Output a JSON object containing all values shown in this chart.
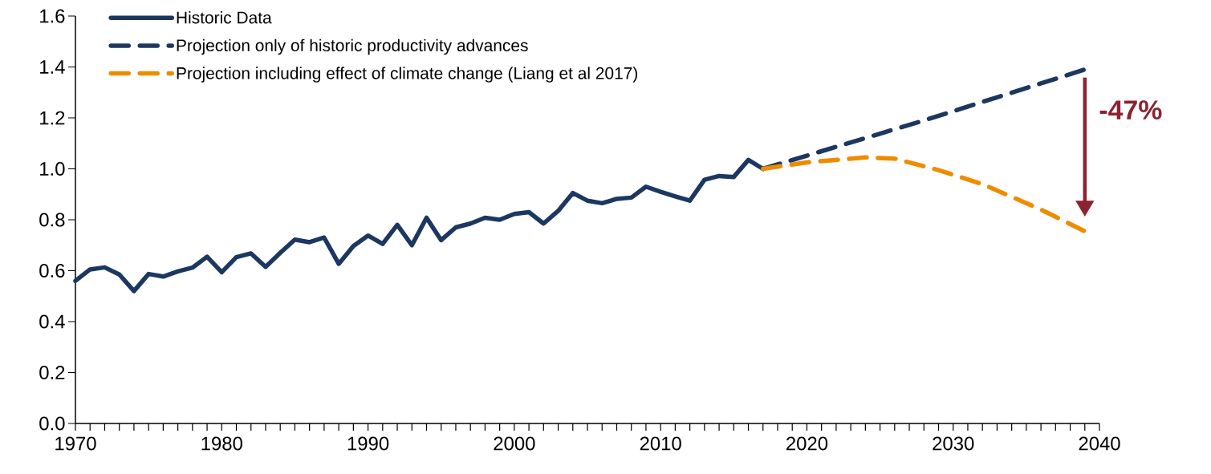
{
  "chart_data": {
    "type": "line",
    "xlim": [
      1970,
      2040
    ],
    "xticks": [
      1970,
      1980,
      1990,
      2000,
      2010,
      2020,
      2030,
      2040
    ],
    "ylim": [
      0,
      1.6
    ],
    "yticks": [
      {
        "value": 0,
        "label": "0.0"
      },
      {
        "value": 0.2,
        "label": "0.2"
      },
      {
        "value": 0.4,
        "label": "0.4"
      },
      {
        "value": 0.6,
        "label": "0.6"
      },
      {
        "value": 0.8,
        "label": "0.8"
      },
      {
        "value": 1.0,
        "label": "1.0"
      },
      {
        "value": 1.2,
        "label": "1.2"
      },
      {
        "value": 1.4,
        "label": "1.4"
      },
      {
        "value": 1.6,
        "label": "1.6"
      }
    ],
    "legend": "top left",
    "marker": "none",
    "grid": false,
    "series": [
      {
        "name": "Historic Data",
        "color": "#1c3760",
        "line_style": "solid",
        "x": [
          1970,
          1971,
          1972,
          1973,
          1974,
          1975,
          1976,
          1977,
          1978,
          1979,
          1980,
          1981,
          1982,
          1983,
          1984,
          1985,
          1986,
          1987,
          1988,
          1989,
          1990,
          1991,
          1992,
          1993,
          1994,
          1995,
          1996,
          1997,
          1998,
          1999,
          2000,
          2001,
          2002,
          2003,
          2004,
          2005,
          2006,
          2007,
          2008,
          2009,
          2010,
          2011,
          2012,
          2013,
          2014,
          2015,
          2016,
          2017
        ],
        "values": [
          0.56,
          0.605,
          0.613,
          0.585,
          0.52,
          0.587,
          0.577,
          0.597,
          0.612,
          0.655,
          0.594,
          0.653,
          0.668,
          0.615,
          0.67,
          0.722,
          0.712,
          0.73,
          0.627,
          0.697,
          0.738,
          0.705,
          0.78,
          0.7,
          0.808,
          0.72,
          0.77,
          0.785,
          0.808,
          0.8,
          0.823,
          0.83,
          0.785,
          0.835,
          0.905,
          0.875,
          0.865,
          0.882,
          0.887,
          0.93,
          0.91,
          0.892,
          0.875,
          0.957,
          0.972,
          0.968,
          1.035,
          1.0
        ]
      },
      {
        "name": "Projection only of historic productivity advances",
        "color": "#1c3760",
        "line_style": "dashed",
        "x": [
          2017,
          2028,
          2039
        ],
        "values": [
          1.0,
          1.19,
          1.39
        ]
      },
      {
        "name": "Projection including effect of climate change (Liang et al 2017)",
        "color": "#ee8c00",
        "line_style": "dashed",
        "x": [
          2017,
          2020,
          2024,
          2026,
          2029,
          2032,
          2036,
          2039
        ],
        "values": [
          1.0,
          1.025,
          1.045,
          1.04,
          0.995,
          0.94,
          0.84,
          0.755
        ]
      }
    ],
    "annotations": [
      "-47%"
    ]
  }
}
